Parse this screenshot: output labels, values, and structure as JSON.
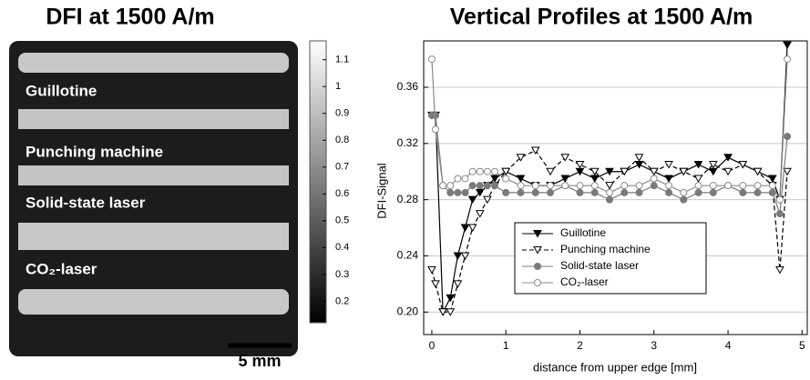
{
  "chart_data": [
    {
      "type": "image",
      "title": "DFI at 1500 A/m",
      "labels": [
        "Guillotine",
        "Punching machine",
        "Solid-state laser",
        "CO₂-laser"
      ],
      "clim": [
        0.12,
        1.17
      ],
      "cticks": [
        0.2,
        0.3,
        0.4,
        0.5,
        0.6,
        0.7,
        0.8,
        0.9,
        1,
        1.1
      ],
      "scale_bar": "5 mm"
    },
    {
      "type": "line",
      "title": "Vertical Profiles at 1500 A/m",
      "x_label": "distance from upper edge [mm]",
      "y_label": "DFI-Signal",
      "x": [
        0,
        0.05,
        0.15,
        0.25,
        0.35,
        0.45,
        0.55,
        0.65,
        0.75,
        0.85,
        1.0,
        1.2,
        1.4,
        1.6,
        1.8,
        2.0,
        2.2,
        2.4,
        2.6,
        2.8,
        3.0,
        3.2,
        3.4,
        3.6,
        3.8,
        4.0,
        4.2,
        4.4,
        4.6,
        4.7,
        4.8
      ],
      "series": [
        {
          "name": "Guillotine",
          "color": "#000000",
          "marker": "triangle-down",
          "filled": true,
          "dashed": false,
          "values": [
            0.34,
            0.34,
            0.2,
            0.21,
            0.24,
            0.26,
            0.28,
            0.285,
            0.29,
            0.295,
            0.3,
            0.295,
            0.29,
            0.29,
            0.295,
            0.3,
            0.295,
            0.3,
            0.3,
            0.305,
            0.3,
            0.295,
            0.3,
            0.305,
            0.3,
            0.31,
            0.305,
            0.3,
            0.295,
            0.28,
            0.39
          ]
        },
        {
          "name": "Punching machine",
          "color": "#000000",
          "marker": "triangle-down",
          "filled": false,
          "dashed": true,
          "values": [
            0.23,
            0.22,
            0.2,
            0.2,
            0.22,
            0.24,
            0.26,
            0.27,
            0.28,
            0.29,
            0.3,
            0.31,
            0.315,
            0.3,
            0.31,
            0.305,
            0.3,
            0.29,
            0.3,
            0.31,
            0.3,
            0.305,
            0.3,
            0.295,
            0.305,
            0.3,
            0.305,
            0.3,
            0.29,
            0.23,
            0.3
          ]
        },
        {
          "name": "Solid-state laser",
          "color": "#7a7a7a",
          "marker": "circle",
          "filled": true,
          "dashed": false,
          "values": [
            0.34,
            0.34,
            0.29,
            0.285,
            0.285,
            0.285,
            0.29,
            0.29,
            0.29,
            0.29,
            0.285,
            0.285,
            0.285,
            0.285,
            0.29,
            0.285,
            0.285,
            0.28,
            0.285,
            0.285,
            0.29,
            0.285,
            0.28,
            0.285,
            0.285,
            0.29,
            0.285,
            0.285,
            0.285,
            0.27,
            0.325
          ]
        },
        {
          "name": "CO₂-laser",
          "color": "#8a8a8a",
          "marker": "circle",
          "filled": false,
          "dashed": false,
          "values": [
            0.38,
            0.33,
            0.29,
            0.29,
            0.295,
            0.295,
            0.3,
            0.3,
            0.3,
            0.3,
            0.295,
            0.29,
            0.29,
            0.29,
            0.29,
            0.29,
            0.29,
            0.285,
            0.29,
            0.29,
            0.295,
            0.29,
            0.285,
            0.29,
            0.29,
            0.29,
            0.29,
            0.29,
            0.29,
            0.28,
            0.38
          ]
        }
      ],
      "xlim": [
        -0.11,
        5.07
      ],
      "xticks": [
        0,
        1,
        2,
        3,
        4,
        5
      ],
      "ylim": [
        0.184,
        0.393
      ],
      "yticks": [
        {
          "value": 0.2,
          "label": "0.20"
        },
        0.24,
        0.28,
        0.32,
        0.36
      ],
      "grid": true,
      "legend": "lower center"
    }
  ]
}
